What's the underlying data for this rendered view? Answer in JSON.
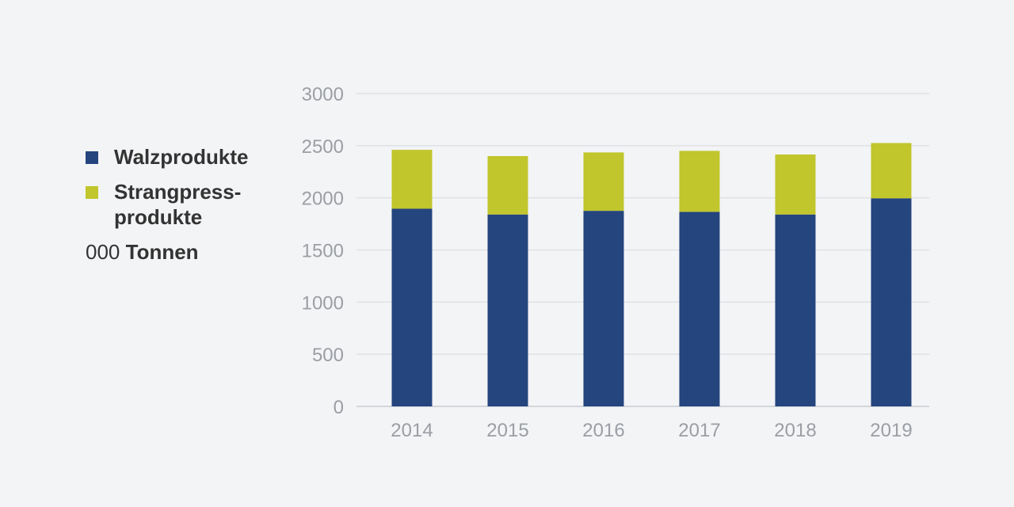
{
  "legend": {
    "items": [
      {
        "label": "Walzprodukte",
        "color": "#24457e"
      },
      {
        "label": "Strangpress-\nprodukte",
        "color": "#c0c62c"
      }
    ],
    "unit_prefix": "000",
    "unit_label": "Tonnen"
  },
  "chart_data": {
    "type": "bar",
    "stacked": true,
    "categories": [
      "2014",
      "2015",
      "2016",
      "2017",
      "2018",
      "2019"
    ],
    "series": [
      {
        "name": "Walzprodukte",
        "color": "#24457e",
        "values": [
          1895,
          1840,
          1875,
          1865,
          1840,
          1995
        ]
      },
      {
        "name": "Strangpress-produkte",
        "color": "#c0c62c",
        "values": [
          565,
          560,
          560,
          585,
          575,
          530
        ]
      }
    ],
    "ylim": [
      0,
      3000
    ],
    "yticks": [
      0,
      500,
      1000,
      1500,
      2000,
      2500,
      3000
    ],
    "grid": true,
    "legend_position": "left",
    "unit": "000 Tonnen"
  }
}
